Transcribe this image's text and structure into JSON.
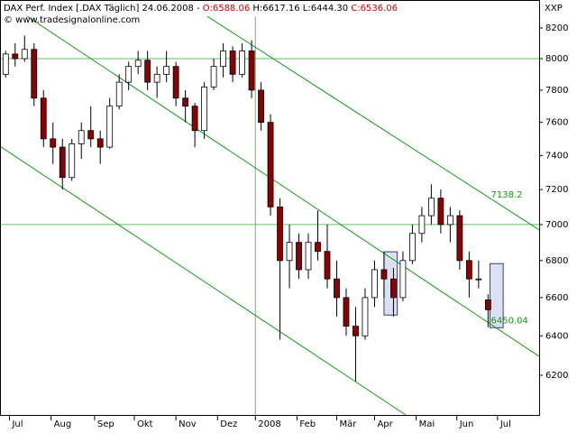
{
  "chart_data": {
    "type": "candlestick",
    "header": [
      {
        "text": "DAX Perf. Index [.DAX  Täglich] 24.06.2008 - ",
        "color": "#000000"
      },
      {
        "text": "O:6588.06",
        "color": "#cc0000"
      },
      {
        "text": " H:6617.16 L:6444.30 ",
        "color": "#000000"
      },
      {
        "text": "C:6536.06",
        "color": "#cc0000"
      }
    ],
    "copyright": "© www.tradesignalonline.com",
    "corner_label": "XXP",
    "log_scale": true,
    "up_color": "#ffffff",
    "down_color": "#8b0000",
    "grid_color": "#66bb66",
    "channel_color": "#119911",
    "highlight_color": "#dde0f4",
    "ylim": [
      6005,
      8278
    ],
    "yticks": [
      6200,
      6400,
      6600,
      6800,
      7000,
      7200,
      7400,
      7600,
      7800,
      8000,
      8200
    ],
    "xlim": [
      -0.6,
      56.4
    ],
    "xticks": [
      {
        "value": 0.4,
        "label": "Jul"
      },
      {
        "value": 4.8,
        "label": "Aug"
      },
      {
        "value": 9.4,
        "label": "Sep"
      },
      {
        "value": 13.6,
        "label": "Okt"
      },
      {
        "value": 18.0,
        "label": "Nov"
      },
      {
        "value": 22.4,
        "label": "Dez"
      },
      {
        "value": 26.4,
        "label": "2008"
      },
      {
        "value": 30.8,
        "label": "Feb"
      },
      {
        "value": 35.0,
        "label": "Mär"
      },
      {
        "value": 39.0,
        "label": "Apr"
      },
      {
        "value": 43.4,
        "label": "Mai"
      },
      {
        "value": 47.7,
        "label": "Jun"
      },
      {
        "value": 52.0,
        "label": "Jul"
      }
    ],
    "grid_lines": {
      "y": [
        8000,
        7000
      ],
      "x": [
        26.4
      ]
    },
    "candles": [
      [
        7900,
        8050,
        7880,
        8030
      ],
      [
        8030,
        8100,
        7950,
        8000
      ],
      [
        8000,
        8150,
        7980,
        8060
      ],
      [
        8060,
        8100,
        7700,
        7750
      ],
      [
        7750,
        7800,
        7450,
        7500
      ],
      [
        7500,
        7600,
        7350,
        7450
      ],
      [
        7450,
        7500,
        7200,
        7270
      ],
      [
        7270,
        7500,
        7250,
        7470
      ],
      [
        7470,
        7600,
        7380,
        7550
      ],
      [
        7550,
        7700,
        7450,
        7500
      ],
      [
        7500,
        7550,
        7350,
        7450
      ],
      [
        7450,
        7750,
        7440,
        7700
      ],
      [
        7700,
        7900,
        7680,
        7850
      ],
      [
        7850,
        7980,
        7800,
        7950
      ],
      [
        7950,
        8050,
        7900,
        7990
      ],
      [
        7990,
        8050,
        7800,
        7850
      ],
      [
        7850,
        7950,
        7750,
        7900
      ],
      [
        7900,
        8050,
        7850,
        7950
      ],
      [
        7950,
        7980,
        7700,
        7750
      ],
      [
        7750,
        7800,
        7600,
        7700
      ],
      [
        7700,
        7720,
        7450,
        7550
      ],
      [
        7550,
        7850,
        7500,
        7820
      ],
      [
        7820,
        8000,
        7800,
        7950
      ],
      [
        7950,
        8100,
        7880,
        8050
      ],
      [
        8050,
        8080,
        7850,
        7900
      ],
      [
        7900,
        8100,
        7880,
        8050
      ],
      [
        8050,
        8120,
        7750,
        7800
      ],
      [
        7800,
        7850,
        7550,
        7600
      ],
      [
        7600,
        7650,
        7050,
        7100
      ],
      [
        7100,
        7150,
        6380,
        6800
      ],
      [
        6800,
        7000,
        6650,
        6900
      ],
      [
        6900,
        6950,
        6700,
        6750
      ],
      [
        6750,
        6950,
        6700,
        6900
      ],
      [
        6900,
        7080,
        6800,
        6850
      ],
      [
        6850,
        7000,
        6650,
        6700
      ],
      [
        6700,
        6800,
        6500,
        6600
      ],
      [
        6600,
        6650,
        6400,
        6450
      ],
      [
        6450,
        6550,
        6170,
        6400
      ],
      [
        6400,
        6650,
        6380,
        6600
      ],
      [
        6600,
        6800,
        6550,
        6750
      ],
      [
        6750,
        6850,
        6600,
        6700
      ],
      [
        6700,
        6760,
        6500,
        6600
      ],
      [
        6600,
        6850,
        6580,
        6800
      ],
      [
        6800,
        7000,
        6780,
        6950
      ],
      [
        6950,
        7100,
        6900,
        7050
      ],
      [
        7050,
        7230,
        7000,
        7150
      ],
      [
        7150,
        7200,
        6950,
        7000
      ],
      [
        7000,
        7100,
        6900,
        7050
      ],
      [
        7050,
        7080,
        6750,
        6800
      ],
      [
        6800,
        6850,
        6600,
        6700
      ],
      [
        6700,
        6800,
        6650,
        6700
      ],
      [
        6588.06,
        6617.16,
        6444.3,
        6536.06
      ]
    ],
    "channels": [
      {
        "x": [
          21.3,
          56.4
        ],
        "y": [
          8278,
          6970
        ]
      },
      {
        "x": [
          2.26,
          56.4
        ],
        "y": [
          8278,
          6295
        ]
      },
      {
        "x": [
          -0.6,
          42.3
        ],
        "y": [
          7455,
          6005
        ]
      }
    ],
    "highlights": [
      {
        "x": [
          40.0,
          41.4
        ],
        "y": [
          6508,
          6848
        ]
      },
      {
        "x": [
          51.2,
          52.6
        ],
        "y": [
          6442,
          6783
        ]
      }
    ],
    "annotations": [
      7138.2,
      6450.04
    ]
  }
}
